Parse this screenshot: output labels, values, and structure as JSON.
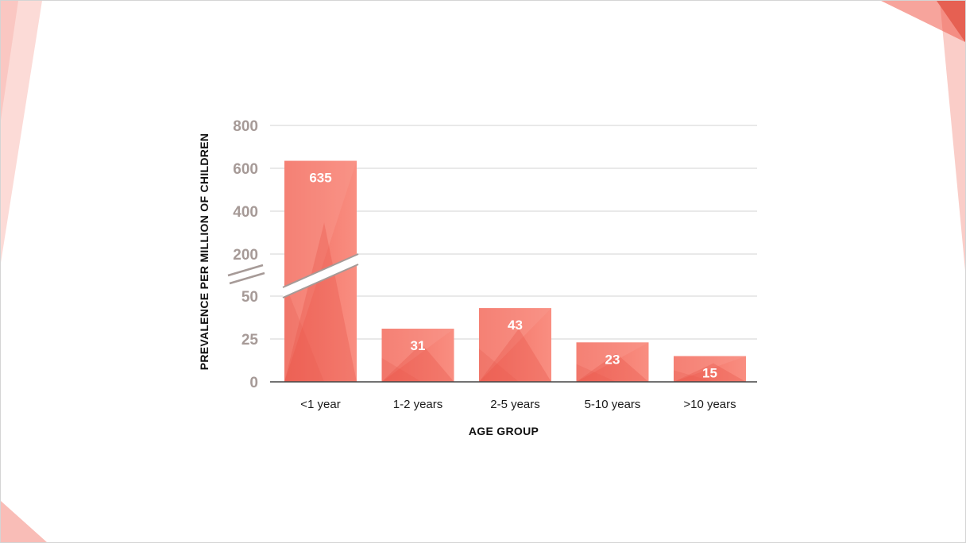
{
  "chart_data": {
    "type": "bar",
    "title": "",
    "xlabel": "AGE GROUP",
    "ylabel": "PREVALENCE PER MILLION OF CHILDREN",
    "categories": [
      "<1 year",
      "1-2 years",
      "2-5 years",
      "5-10 years",
      ">10 years"
    ],
    "values": [
      635,
      31,
      43,
      23,
      15
    ],
    "value_labels": [
      "635",
      "31",
      "43",
      "23",
      "15"
    ],
    "y_axis": {
      "broken": true,
      "lower_segment": {
        "ticks": [
          0,
          25,
          50
        ],
        "range": [
          0,
          50
        ]
      },
      "upper_segment": {
        "ticks": [
          200,
          400,
          600,
          800
        ],
        "range": [
          200,
          800
        ]
      },
      "tick_labels": [
        "0",
        "25",
        "50",
        "200",
        "400",
        "600",
        "800"
      ]
    },
    "grid": true,
    "legend": "none",
    "colors": {
      "bar": "#f47f72",
      "bar_light": "#f99a8d",
      "bar_dark": "#e9574a",
      "grid": "#dcdcdc",
      "tick_text": "#a69a97",
      "axis_line": "#444444",
      "decor": "#f05a4a"
    }
  }
}
